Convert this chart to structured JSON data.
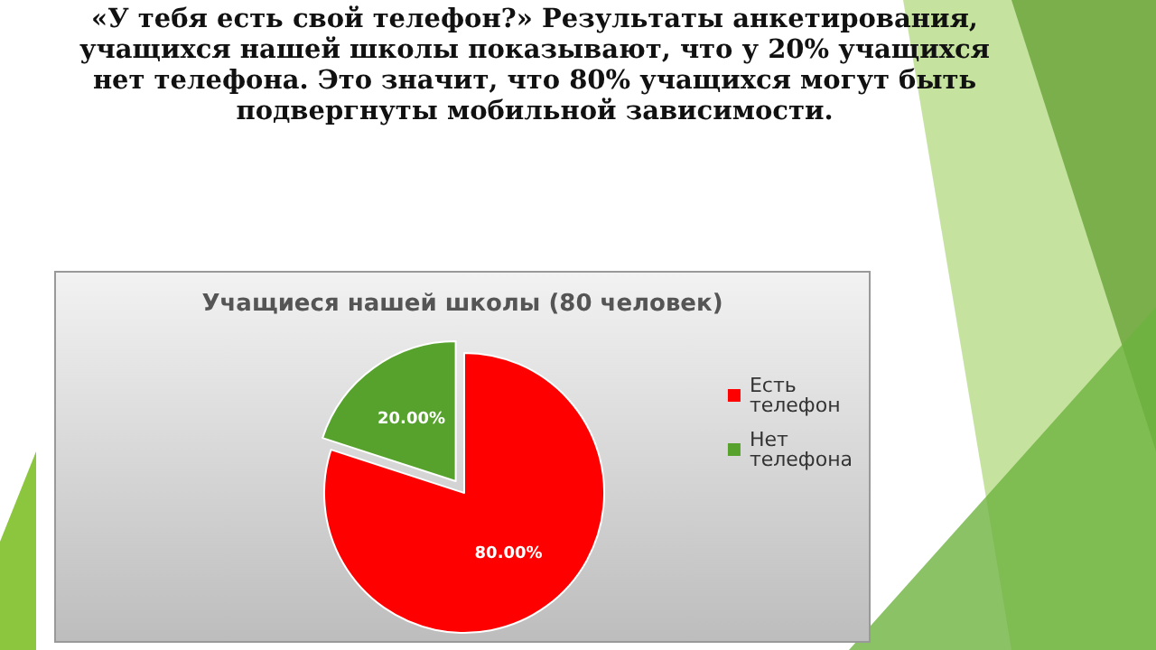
{
  "chart_data": {
    "type": "pie",
    "title": "Учащиеся нашей школы (80 человек)",
    "annotations": [
      "«У тебя есть свой телефон?» Результаты анкетирования, учащихся нашей школы показывают, что у 20% учащихся нет телефона. Это значит, что 80% учащихся могут быть подвергнуты мобильной зависимости."
    ],
    "categories": [
      "Есть телефон",
      "Нет телефона"
    ],
    "values": [
      80,
      20
    ],
    "value_labels": [
      "80.00%",
      "20.00%"
    ],
    "colors": [
      "#ff0000",
      "#56a22c"
    ],
    "legend": "right"
  }
}
